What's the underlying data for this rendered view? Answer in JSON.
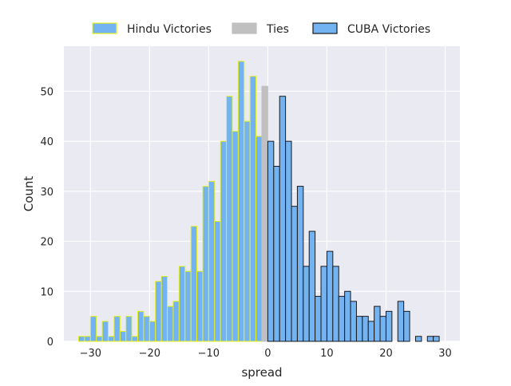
{
  "chart_data": {
    "type": "bar",
    "title": "",
    "xlabel": "spread",
    "ylabel": "Count",
    "xlim": [
      -34.5,
      32.5
    ],
    "ylim": [
      0,
      59
    ],
    "xticks": [
      -30,
      -20,
      -10,
      0,
      10,
      20,
      30
    ],
    "yticks": [
      0,
      10,
      20,
      30,
      40,
      50
    ],
    "grid": true,
    "legend_position": "top-center",
    "bin_width": 1,
    "series": [
      {
        "name": "Hindu Victories",
        "fill": "#74b3f2",
        "edge": "#e6f01e",
        "bins": [
          {
            "x": -32,
            "count": 1
          },
          {
            "x": -31,
            "count": 1
          },
          {
            "x": -30,
            "count": 5
          },
          {
            "x": -29,
            "count": 1
          },
          {
            "x": -28,
            "count": 4
          },
          {
            "x": -27,
            "count": 1
          },
          {
            "x": -26,
            "count": 5
          },
          {
            "x": -25,
            "count": 2
          },
          {
            "x": -24,
            "count": 5
          },
          {
            "x": -23,
            "count": 1
          },
          {
            "x": -22,
            "count": 6
          },
          {
            "x": -21,
            "count": 5
          },
          {
            "x": -20,
            "count": 4
          },
          {
            "x": -19,
            "count": 12
          },
          {
            "x": -18,
            "count": 13
          },
          {
            "x": -17,
            "count": 7
          },
          {
            "x": -16,
            "count": 8
          },
          {
            "x": -15,
            "count": 15
          },
          {
            "x": -14,
            "count": 14
          },
          {
            "x": -13,
            "count": 23
          },
          {
            "x": -12,
            "count": 14
          },
          {
            "x": -11,
            "count": 31
          },
          {
            "x": -10,
            "count": 32
          },
          {
            "x": -9,
            "count": 24
          },
          {
            "x": -8,
            "count": 40
          },
          {
            "x": -7,
            "count": 49
          },
          {
            "x": -6,
            "count": 42
          },
          {
            "x": -5,
            "count": 56
          },
          {
            "x": -4,
            "count": 44
          },
          {
            "x": -3,
            "count": 53
          },
          {
            "x": -2,
            "count": 41
          }
        ]
      },
      {
        "name": "Ties",
        "fill": "#c0c0c0",
        "edge": "#c0c0c0",
        "bins": [
          {
            "x": -1,
            "count": 51
          }
        ]
      },
      {
        "name": "CUBA Victories",
        "fill": "#74b3f2",
        "edge": "#1a1a1a",
        "bins": [
          {
            "x": 0,
            "count": 40
          },
          {
            "x": 1,
            "count": 35
          },
          {
            "x": 2,
            "count": 49
          },
          {
            "x": 3,
            "count": 40
          },
          {
            "x": 4,
            "count": 27
          },
          {
            "x": 5,
            "count": 31
          },
          {
            "x": 6,
            "count": 15
          },
          {
            "x": 7,
            "count": 22
          },
          {
            "x": 8,
            "count": 9
          },
          {
            "x": 9,
            "count": 15
          },
          {
            "x": 10,
            "count": 18
          },
          {
            "x": 11,
            "count": 15
          },
          {
            "x": 12,
            "count": 9
          },
          {
            "x": 13,
            "count": 10
          },
          {
            "x": 14,
            "count": 8
          },
          {
            "x": 15,
            "count": 5
          },
          {
            "x": 16,
            "count": 5
          },
          {
            "x": 17,
            "count": 4
          },
          {
            "x": 18,
            "count": 7
          },
          {
            "x": 19,
            "count": 5
          },
          {
            "x": 20,
            "count": 6
          },
          {
            "x": 22,
            "count": 8
          },
          {
            "x": 23,
            "count": 6
          },
          {
            "x": 25,
            "count": 1
          },
          {
            "x": 27,
            "count": 1
          },
          {
            "x": 28,
            "count": 1
          }
        ]
      }
    ]
  },
  "colors": {
    "plot_background": "#eaeaf2",
    "grid": "#ffffff"
  }
}
